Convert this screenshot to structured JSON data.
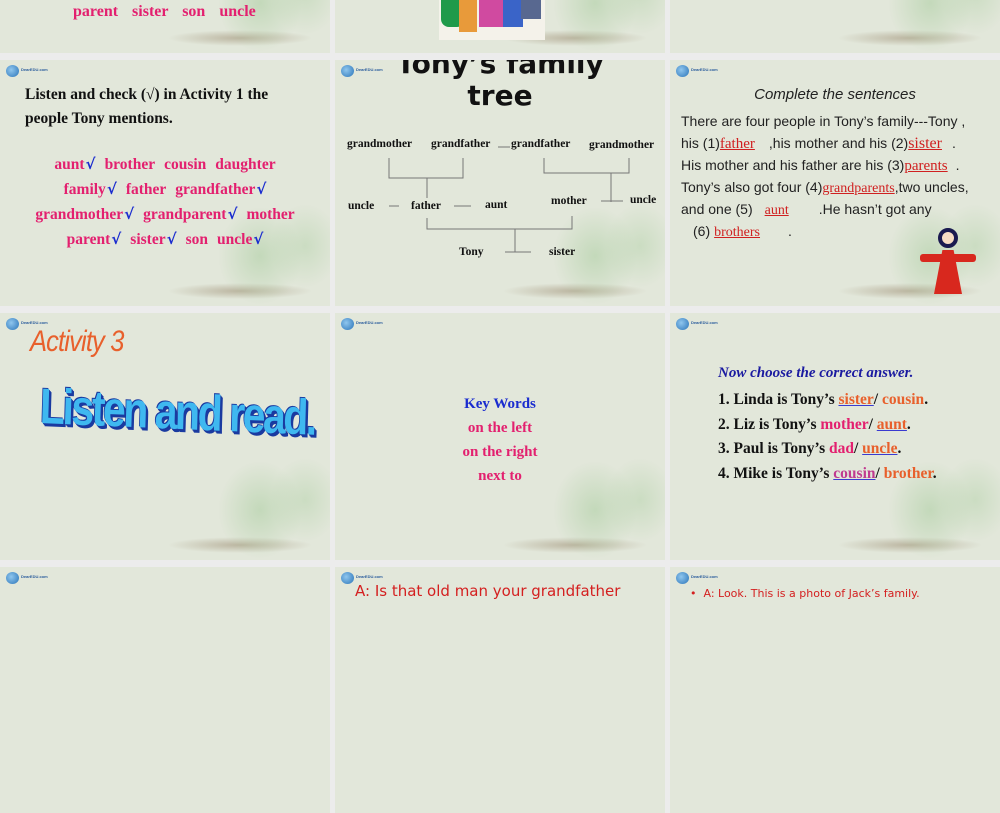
{
  "slides": {
    "top_left": {
      "words": [
        "parent",
        "sister",
        "son",
        "uncle"
      ]
    },
    "listen_check": {
      "title_line1": "Listen and check (√) in Activity 1 the",
      "title_line2": "people Tony mentions.",
      "rows": [
        [
          {
            "w": "aunt",
            "c": true
          },
          {
            "w": "brother",
            "c": false
          },
          {
            "w": "cousin",
            "c": false
          },
          {
            "w": "daughter",
            "c": false
          }
        ],
        [
          {
            "w": "family",
            "c": true
          },
          {
            "w": "father",
            "c": false
          },
          {
            "w": "grandfather",
            "c": true
          }
        ],
        [
          {
            "w": "grandmother",
            "c": true
          },
          {
            "w": "grandparent",
            "c": true
          },
          {
            "w": "mother",
            "c": false
          }
        ],
        [
          {
            "w": "parent",
            "c": true
          },
          {
            "w": "sister",
            "c": true
          },
          {
            "w": "son",
            "c": false
          },
          {
            "w": "uncle",
            "c": true
          }
        ]
      ],
      "check": "√"
    },
    "family_tree": {
      "title_line1": "Tony’s family",
      "title_line2": "tree",
      "gm1": "grandmother",
      "gf1": "grandfather",
      "gf2": "grandfather",
      "gm2": "grandmother",
      "uncle1": "uncle",
      "father": "father",
      "aunt": "aunt",
      "mother": "mother",
      "uncle2": "uncle",
      "tony": "Tony",
      "sister": "sister"
    },
    "complete": {
      "title": "Complete the sentences",
      "l1": "There are four people in Tony’s family---Tony ,",
      "l2a": "his (1)",
      "a1": "father",
      "l2b": ",his mother and his (2)",
      "a2": "sister",
      "l2c": ".",
      "l3a": "His mother and his father are his (3)",
      "a3": "parents",
      "l3b": ".",
      "l4a": "Tony’s also got four (4)",
      "a4": "grandparents",
      "l4b": ",two uncles,",
      "l5a": "and one (5)",
      "a5": "aunt",
      "l5b": ".He hasn’t got any",
      "l6a": "(6)",
      "a6": "brothers",
      "l6b": "."
    },
    "activity3": {
      "title": "Activity 3",
      "wordart": "Listen and read."
    },
    "key_words": {
      "title": "Key Words",
      "items": [
        "on the left",
        "on the right",
        "next to"
      ]
    },
    "choose": {
      "title": "Now choose the correct answer.",
      "items": [
        {
          "pre": "1. Linda is Tony’s ",
          "a": "sister",
          "b": "cousin",
          "ans": "a"
        },
        {
          "pre": "2. Liz is Tony’s ",
          "a": "mother",
          "b": "aunt",
          "ans": "b"
        },
        {
          "pre": "3. Paul is Tony’s ",
          "a": "dad",
          "b": "uncle",
          "ans": "b"
        },
        {
          "pre": "4. Mike is Tony’s ",
          "a": "cousin",
          "b": "brother",
          "ans": "a"
        }
      ]
    },
    "bottom_mid": {
      "text": "A: Is that old man your grandfather"
    },
    "bottom_right": {
      "text": "A: Look. This is a photo of Jack’s family."
    }
  },
  "logo_text": "DearEDU.com",
  "colors": {
    "slide_bg": "#e2e7da",
    "pink": "#e3206f",
    "check_blue": "#1a2ccf",
    "answer_red": "#d02020",
    "orange": "#e8602c",
    "navy": "#1a1aa0"
  }
}
